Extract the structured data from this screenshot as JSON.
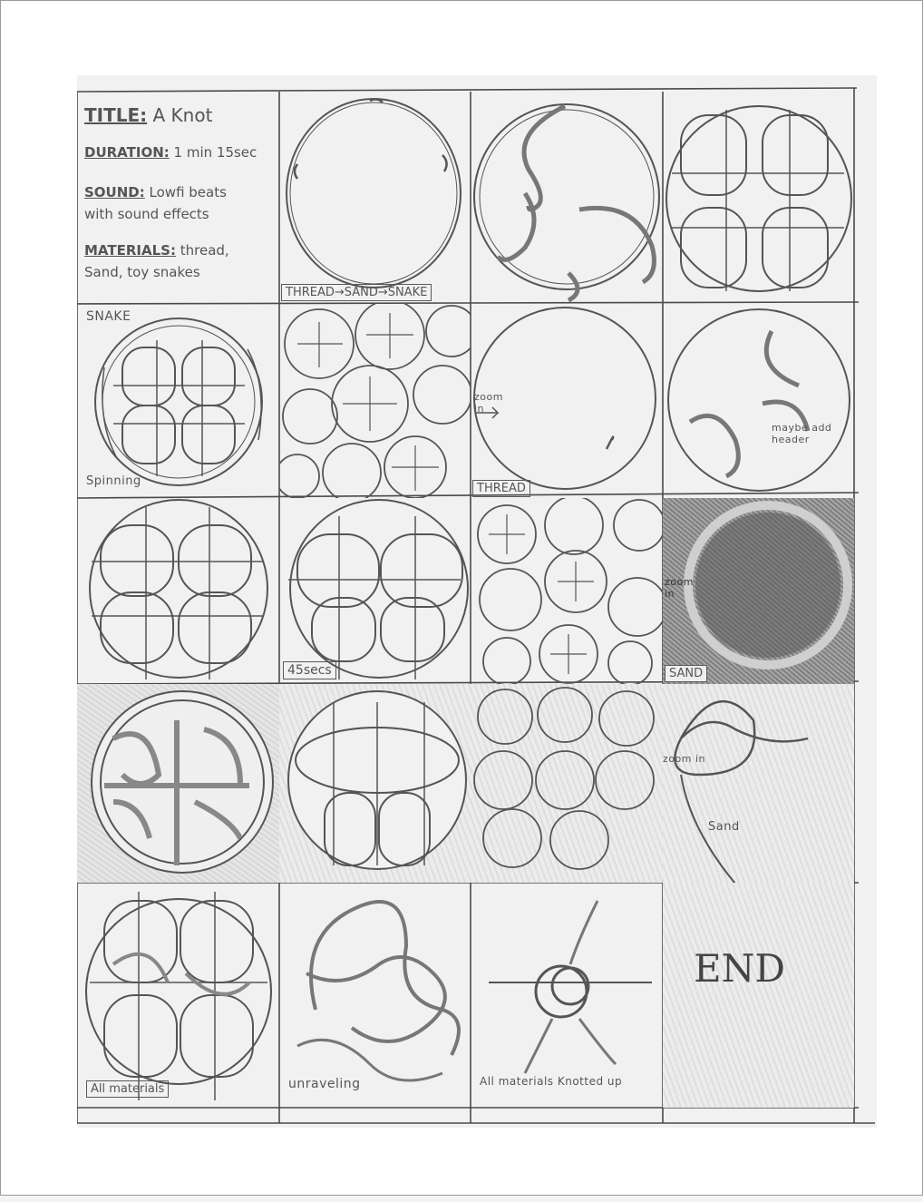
{
  "title_block": {
    "title_label": "TITLE:",
    "title_value": "A Knot",
    "duration_label": "DURATION:",
    "duration_value": "1 min 15sec",
    "sound_label": "SOUND:",
    "sound_value": "Lowfi beats",
    "sound_value_2": "with sound effects",
    "materials_label": "MATERIALS:",
    "materials_value": "thread,",
    "materials_value_2": "Sand, toy snakes"
  },
  "annotations": {
    "thread_sand_snake": "THREAD→SAND→SNAKE",
    "snake": "SNAKE",
    "spinning": "Spinning",
    "zoom_in_1": "zoom in",
    "thread": "THREAD",
    "maybe_add_header": "maybe add header",
    "sec_45": "45secs",
    "zoom_in_2": "zoom in",
    "sand": "SAND",
    "zoom_in_3": "zoom in",
    "sand_lower": "Sand",
    "all_materials": "All materials",
    "unraveling": "unraveling",
    "all_materials_knotted_up": "All materials Knotted up",
    "end": "END"
  }
}
